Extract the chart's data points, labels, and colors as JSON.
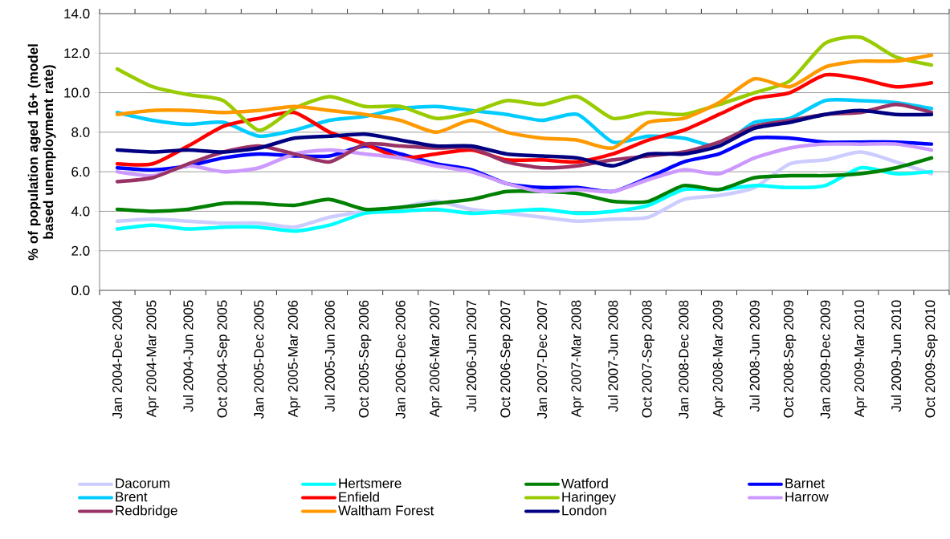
{
  "chart_data": {
    "type": "line",
    "ylabel": "% of population aged 16+ (model based unemployment rate)",
    "categories": [
      "Jan 2004-Dec 2004",
      "Apr 2004-Mar 2005",
      "Jul 2004-Jun 2005",
      "Oct 2004-Sep 2005",
      "Jan 2005-Dec 2005",
      "Apr 2005-Mar 2006",
      "Jul 2005-Jun 2006",
      "Oct 2005-Sep 2006",
      "Jan 2006-Dec 2006",
      "Apr 2006-Mar 2007",
      "Jul 2006-Jun 2007",
      "Oct 2006-Sep 2007",
      "Jan 2007-Dec 2007",
      "Apr 2007-Mar 2008",
      "Jul 2007-Jun 2008",
      "Oct 2007-Sep 2008",
      "Jan 2008-Dec 2008",
      "Apr 2008-Mar 2009",
      "Jul 2008-Jun 2009",
      "Oct 2008-Sep 2009",
      "Jan 2009-Dec 2009",
      "Apr 2009-Mar 2010",
      "Jul 2009-Jun 2010",
      "Oct 2009-Sep 2010"
    ],
    "series": [
      {
        "name": "Dacorum",
        "color": "#ccccff",
        "values": [
          3.5,
          3.6,
          3.5,
          3.4,
          3.4,
          3.2,
          3.7,
          4.0,
          4.2,
          4.5,
          4.1,
          3.9,
          3.7,
          3.5,
          3.6,
          3.7,
          4.6,
          4.8,
          5.2,
          6.4,
          6.6,
          7.0,
          6.5,
          5.9
        ]
      },
      {
        "name": "Hertsmere",
        "color": "#00ffff",
        "values": [
          3.1,
          3.3,
          3.1,
          3.2,
          3.2,
          3.0,
          3.3,
          3.9,
          4.0,
          4.1,
          3.9,
          4.0,
          4.1,
          3.9,
          4.0,
          4.3,
          5.1,
          5.1,
          5.3,
          5.2,
          5.3,
          6.2,
          5.9,
          6.0
        ]
      },
      {
        "name": "Watford",
        "color": "#008000",
        "values": [
          4.1,
          4.0,
          4.1,
          4.4,
          4.4,
          4.3,
          4.6,
          4.1,
          4.2,
          4.4,
          4.6,
          5.0,
          5.0,
          4.9,
          4.5,
          4.5,
          5.3,
          5.1,
          5.7,
          5.8,
          5.8,
          5.9,
          6.2,
          6.7
        ]
      },
      {
        "name": "Barnet",
        "color": "#0000ff",
        "values": [
          6.2,
          6.1,
          6.3,
          6.7,
          6.9,
          6.8,
          6.8,
          7.3,
          6.9,
          6.4,
          6.1,
          5.4,
          5.2,
          5.2,
          5.0,
          5.7,
          6.5,
          6.9,
          7.7,
          7.7,
          7.5,
          7.5,
          7.5,
          7.4
        ]
      },
      {
        "name": "Brent",
        "color": "#00ccff",
        "values": [
          9.0,
          8.6,
          8.4,
          8.5,
          7.8,
          8.1,
          8.6,
          8.8,
          9.2,
          9.3,
          9.1,
          8.9,
          8.6,
          8.9,
          7.5,
          7.8,
          7.7,
          7.3,
          8.5,
          8.7,
          9.6,
          9.6,
          9.5,
          9.2
        ]
      },
      {
        "name": "Enfield",
        "color": "#ff0000",
        "values": [
          6.4,
          6.4,
          7.3,
          8.3,
          8.7,
          9.0,
          8.0,
          7.4,
          6.7,
          6.9,
          7.1,
          6.6,
          6.6,
          6.5,
          6.9,
          7.6,
          8.1,
          8.9,
          9.7,
          10.0,
          10.9,
          10.7,
          10.3,
          10.5
        ]
      },
      {
        "name": "Haringey",
        "color": "#99cc00",
        "values": [
          11.2,
          10.3,
          9.9,
          9.6,
          8.1,
          9.2,
          9.8,
          9.3,
          9.3,
          8.7,
          9.0,
          9.6,
          9.4,
          9.8,
          8.7,
          9.0,
          8.9,
          9.4,
          10.0,
          10.6,
          12.5,
          12.8,
          11.8,
          11.4
        ]
      },
      {
        "name": "Harrow",
        "color": "#cc99ff",
        "values": [
          6.0,
          5.8,
          6.3,
          6.0,
          6.2,
          6.9,
          7.1,
          6.9,
          6.7,
          6.3,
          6.0,
          5.4,
          5.0,
          5.1,
          5.0,
          5.6,
          6.1,
          5.9,
          6.7,
          7.2,
          7.4,
          7.4,
          7.4,
          7.1
        ]
      },
      {
        "name": "Redbridge",
        "color": "#993366",
        "values": [
          5.5,
          5.7,
          6.4,
          7.0,
          7.3,
          6.9,
          6.5,
          7.4,
          7.3,
          7.2,
          7.2,
          6.5,
          6.2,
          6.3,
          6.6,
          6.8,
          7.0,
          7.5,
          8.3,
          8.6,
          8.9,
          9.0,
          9.4,
          9.0
        ]
      },
      {
        "name": "Waltham Forest",
        "color": "#ff9900",
        "values": [
          8.9,
          9.1,
          9.1,
          9.0,
          9.1,
          9.3,
          9.1,
          8.9,
          8.6,
          8.0,
          8.6,
          8.0,
          7.7,
          7.6,
          7.2,
          8.5,
          8.7,
          9.5,
          10.7,
          10.3,
          11.3,
          11.6,
          11.6,
          11.9
        ]
      },
      {
        "name": "London",
        "color": "#000080",
        "values": [
          7.1,
          7.0,
          7.1,
          7.0,
          7.2,
          7.7,
          7.8,
          7.9,
          7.6,
          7.3,
          7.3,
          6.9,
          6.8,
          6.7,
          6.3,
          6.9,
          6.9,
          7.3,
          8.2,
          8.5,
          8.9,
          9.1,
          8.9,
          8.9
        ]
      }
    ],
    "ylim": [
      0,
      14
    ],
    "yticks": [
      {
        "value": 0,
        "label": "0.0"
      },
      {
        "value": 2,
        "label": "2.0"
      },
      {
        "value": 4,
        "label": "4.0"
      },
      {
        "value": 6,
        "label": "6.0"
      },
      {
        "value": 8,
        "label": "8.0"
      },
      {
        "value": 10,
        "label": "10.0"
      },
      {
        "value": 12,
        "label": "12.0"
      },
      {
        "value": 14,
        "label": "14.0"
      }
    ],
    "grid": "y",
    "legend": "bottom",
    "line_style": "solid"
  }
}
